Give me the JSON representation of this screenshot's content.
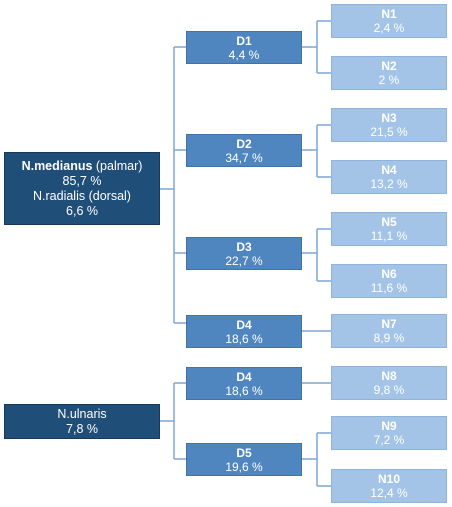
{
  "colors": {
    "root": "#1f4e79",
    "mid": "#4f86c0",
    "leaf": "#a3c4e6",
    "line": "#7fa6d2",
    "text": "#ffffff"
  },
  "roots": [
    {
      "id": "medianus",
      "line1_bold": "N.medianus",
      "line1_rest": " (palmar)",
      "line2": "85,7 %",
      "line3": "N.radialis (dorsal)",
      "line4": "6,6 %"
    },
    {
      "id": "ulnaris",
      "line1": "N.ulnaris",
      "line2": "7,8 %"
    }
  ],
  "branches": [
    {
      "id": "d1-medianus",
      "label": "D1",
      "value": "4,4 %"
    },
    {
      "id": "d2-medianus",
      "label": "D2",
      "value": "34,7 %"
    },
    {
      "id": "d3-medianus",
      "label": "D3",
      "value": "22,7 %"
    },
    {
      "id": "d4-medianus",
      "label": "D4",
      "value": "18,6 %"
    },
    {
      "id": "d4-ulnaris",
      "label": "D4",
      "value": "18,6 %"
    },
    {
      "id": "d5-ulnaris",
      "label": "D5",
      "value": "19,6 %"
    }
  ],
  "nerves": [
    {
      "id": "n1",
      "label": "N1",
      "value": "2,4 %"
    },
    {
      "id": "n2",
      "label": "N2",
      "value": "2 %"
    },
    {
      "id": "n3",
      "label": "N3",
      "value": "21,5 %"
    },
    {
      "id": "n4",
      "label": "N4",
      "value": "13,2 %"
    },
    {
      "id": "n5",
      "label": "N5",
      "value": "11,1 %"
    },
    {
      "id": "n6",
      "label": "N6",
      "value": "11,6 %"
    },
    {
      "id": "n7",
      "label": "N7",
      "value": "8,9 %"
    },
    {
      "id": "n8",
      "label": "N8",
      "value": "9,8 %"
    },
    {
      "id": "n9",
      "label": "N9",
      "value": "7,2 %"
    },
    {
      "id": "n10",
      "label": "N10",
      "value": "12,4 %"
    }
  ]
}
